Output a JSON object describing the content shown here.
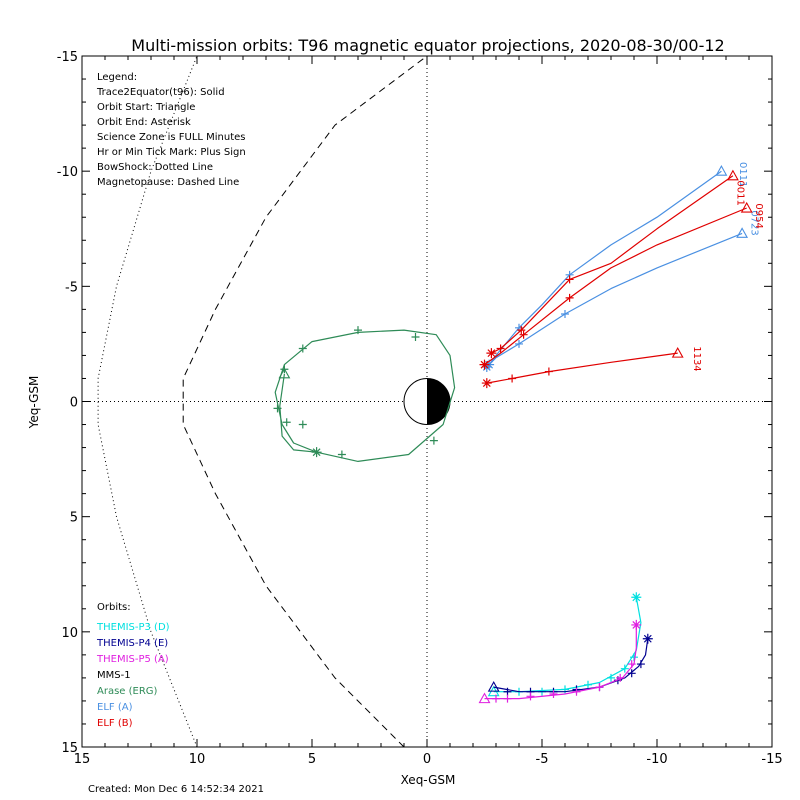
{
  "chart_data": {
    "type": "line",
    "title": "Multi-mission orbits: T96 magnetic equator projections, 2020-08-30/00-12",
    "xlabel": "Xeq-GSM",
    "ylabel": "Yeq-GSM",
    "xlim": [
      15,
      -15
    ],
    "ylim": [
      15,
      -15
    ],
    "x_ticks": [
      "15",
      "10",
      "5",
      "0",
      "-5",
      "-10",
      "-15"
    ],
    "y_ticks": [
      "-15",
      "-10",
      "-5",
      "0",
      "5",
      "10",
      "15"
    ],
    "grid": false,
    "created": "Created: Mon Dec  6 14:52:34 2021",
    "legend_notes": [
      "Legend:",
      "Trace2Equator(t96): Solid",
      "Orbit Start: Triangle",
      "Orbit End: Asterisk",
      "Science Zone is FULL Minutes",
      "Hr or Min Tick Mark: Plus Sign",
      "BowShock: Dotted Line",
      "Magnetopause: Dashed Line"
    ],
    "orbits_title": "Orbits:",
    "orbits_legend": [
      {
        "label": "THEMIS-P3 (D)",
        "color": "#00e0e0"
      },
      {
        "label": "THEMIS-P4 (E)",
        "color": "#000090"
      },
      {
        "label": "THEMIS-P5 (A)",
        "color": "#e020e0"
      },
      {
        "label": "MMS-1",
        "color": "#000000"
      },
      {
        "label": "Arase (ERG)",
        "color": "#2e8b57"
      },
      {
        "label": "ELF (A)",
        "color": "#4a90e2"
      },
      {
        "label": "ELF (B)",
        "color": "#e00000"
      }
    ],
    "bowshock": {
      "style": "dotted",
      "x": [
        10.0,
        12.0,
        13.5,
        14.3,
        14.3,
        13.5,
        12.0,
        10.0
      ],
      "y": [
        15.0,
        10.0,
        5.0,
        1.0,
        -1.0,
        -5.0,
        -10.0,
        -15.0
      ]
    },
    "magnetopause": {
      "style": "dashed",
      "x": [
        1.0,
        4.0,
        7.0,
        9.2,
        10.6,
        10.6,
        9.2,
        7.0,
        4.0,
        0.0
      ],
      "y": [
        15.0,
        12.0,
        8.0,
        4.0,
        1.0,
        -1.0,
        -4.0,
        -8.0,
        -12.0,
        -15.0
      ]
    },
    "series": [
      {
        "name": "Arase (ERG)",
        "color": "#2e8b57",
        "x": [
          6.2,
          6.4,
          6.3,
          5.8,
          4.8,
          3.0,
          0.8,
          -0.7,
          -1.2,
          -1.0,
          -0.4,
          1.0,
          3.0,
          5.0,
          6.2,
          6.6,
          6.3,
          5.8,
          4.8
        ],
        "y": [
          -1.2,
          0.2,
          1.5,
          2.1,
          2.2,
          2.6,
          2.3,
          1.0,
          -0.6,
          -2.0,
          -2.9,
          -3.1,
          -3.0,
          -2.6,
          -1.6,
          -0.4,
          1.0,
          1.8,
          2.2
        ],
        "start": [
          6.2,
          -1.2
        ],
        "end": [
          4.8,
          2.2
        ],
        "ticks": [
          [
            6.2,
            -1.4
          ],
          [
            6.5,
            0.3
          ],
          [
            6.1,
            0.9
          ],
          [
            5.4,
            1.0
          ],
          [
            3.7,
            2.3
          ],
          [
            -0.3,
            1.7
          ],
          [
            0.5,
            -2.8
          ],
          [
            3.0,
            -3.1
          ],
          [
            5.4,
            -2.3
          ]
        ]
      },
      {
        "name": "ELF (A)",
        "color": "#4a90e2",
        "x": [
          -12.8,
          -10.0,
          -8.0,
          -6.2,
          -5.0,
          -4.0,
          -3.0,
          -2.7
        ],
        "y": [
          -10.0,
          -8.0,
          -6.8,
          -5.5,
          -4.2,
          -3.2,
          -2.0,
          -1.6
        ],
        "start": [
          -12.8,
          -10.0
        ],
        "end": [
          -2.7,
          -1.6
        ],
        "ticks": [
          [
            -6.2,
            -5.5
          ],
          [
            -4.0,
            -3.2
          ]
        ],
        "label": "0111",
        "label_xy": [
          -13.6,
          -10.4
        ]
      },
      {
        "name": "ELF (A)",
        "color": "#4a90e2",
        "x": [
          -13.7,
          -10.0,
          -8.0,
          -6.0,
          -4.0,
          -3.0,
          -2.6
        ],
        "y": [
          -7.3,
          -5.8,
          -4.9,
          -3.8,
          -2.5,
          -1.9,
          -1.5
        ],
        "start": [
          -13.7,
          -7.3
        ],
        "end": [
          -2.6,
          -1.5
        ],
        "ticks": [
          [
            -6.0,
            -3.8
          ],
          [
            -4.0,
            -2.5
          ]
        ],
        "label": "0723",
        "label_xy": [
          -14.1,
          -8.3
        ]
      },
      {
        "name": "ELF (B)",
        "color": "#e00000",
        "x": [
          -13.3,
          -10.0,
          -8.0,
          -6.2,
          -4.1,
          -3.2,
          -2.8
        ],
        "y": [
          -9.8,
          -7.5,
          -6.0,
          -5.3,
          -3.1,
          -2.3,
          -2.1
        ],
        "start": [
          -13.3,
          -9.8
        ],
        "end": [
          -2.8,
          -2.1
        ],
        "ticks": [
          [
            -6.2,
            -5.3
          ],
          [
            -4.1,
            -3.1
          ],
          [
            -3.2,
            -2.3
          ]
        ],
        "label": "0011",
        "label_xy": [
          -13.5,
          -9.6
        ]
      },
      {
        "name": "ELF (B)",
        "color": "#e00000",
        "x": [
          -13.9,
          -10.0,
          -8.0,
          -6.2,
          -4.2,
          -3.2,
          -2.5
        ],
        "y": [
          -8.4,
          -6.8,
          -5.8,
          -4.5,
          -2.9,
          -2.1,
          -1.6
        ],
        "start": [
          -13.9,
          -8.4
        ],
        "end": [
          -2.5,
          -1.6
        ],
        "ticks": [
          [
            -6.2,
            -4.5
          ],
          [
            -4.2,
            -2.9
          ]
        ],
        "label": "0954",
        "label_xy": [
          -14.3,
          -8.6
        ]
      },
      {
        "name": "ELF (B)",
        "color": "#e00000",
        "x": [
          -10.9,
          -8.0,
          -5.3,
          -3.7,
          -2.6
        ],
        "y": [
          -2.1,
          -1.7,
          -1.3,
          -1.0,
          -0.8
        ],
        "start": [
          -10.9,
          -2.1
        ],
        "end": [
          -2.6,
          -0.8
        ],
        "ticks": [
          [
            -5.3,
            -1.3
          ],
          [
            -3.7,
            -1.0
          ]
        ],
        "label": "1134",
        "label_xy": [
          -11.6,
          -2.4
        ]
      },
      {
        "name": "THEMIS-P3 (D)",
        "color": "#00e0e0",
        "x": [
          -2.9,
          -4.0,
          -6.0,
          -7.5,
          -8.6,
          -9.1,
          -9.3,
          -9.1
        ],
        "y": [
          12.6,
          12.6,
          12.5,
          12.2,
          11.6,
          10.8,
          9.6,
          8.5
        ],
        "start": [
          -2.9,
          12.6
        ],
        "end": [
          -9.1,
          8.5
        ],
        "ticks": [
          [
            -4.0,
            12.6
          ],
          [
            -5.0,
            12.6
          ],
          [
            -6.0,
            12.5
          ],
          [
            -7.0,
            12.3
          ],
          [
            -8.0,
            12.0
          ],
          [
            -8.6,
            11.6
          ],
          [
            -9.0,
            11.1
          ]
        ]
      },
      {
        "name": "THEMIS-P4 (E)",
        "color": "#000090",
        "x": [
          -2.9,
          -4.0,
          -6.0,
          -7.5,
          -8.6,
          -9.2,
          -9.5,
          -9.6
        ],
        "y": [
          12.4,
          12.6,
          12.6,
          12.4,
          12.0,
          11.5,
          11.0,
          10.3
        ],
        "start": [
          -2.9,
          12.4
        ],
        "end": [
          -9.6,
          10.3
        ],
        "ticks": [
          [
            -3.5,
            12.6
          ],
          [
            -4.5,
            12.6
          ],
          [
            -5.5,
            12.6
          ],
          [
            -6.5,
            12.5
          ],
          [
            -7.5,
            12.4
          ],
          [
            -8.3,
            12.1
          ],
          [
            -8.9,
            11.8
          ],
          [
            -9.3,
            11.4
          ]
        ]
      },
      {
        "name": "THEMIS-P5 (A)",
        "color": "#e020e0",
        "x": [
          -2.5,
          -4.0,
          -6.0,
          -7.5,
          -8.5,
          -9.0,
          -9.1,
          -9.1
        ],
        "y": [
          12.9,
          12.9,
          12.7,
          12.4,
          12.0,
          11.4,
          10.7,
          9.7
        ],
        "start": [
          -2.5,
          12.9
        ],
        "end": [
          -9.1,
          9.7
        ],
        "ticks": [
          [
            -3.0,
            12.9
          ],
          [
            -3.5,
            12.9
          ],
          [
            -4.5,
            12.8
          ],
          [
            -5.5,
            12.7
          ],
          [
            -6.5,
            12.6
          ],
          [
            -7.5,
            12.4
          ],
          [
            -8.4,
            12.0
          ],
          [
            -8.9,
            11.4
          ]
        ]
      }
    ]
  }
}
